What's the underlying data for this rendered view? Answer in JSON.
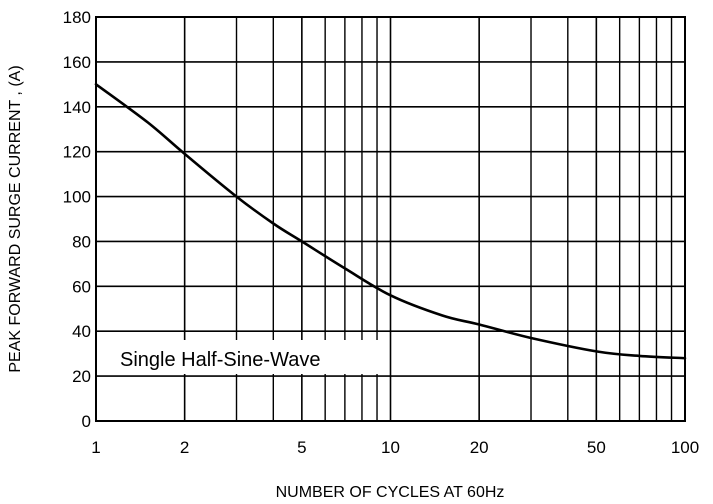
{
  "chart_data": {
    "type": "line",
    "title": "",
    "xlabel": "NUMBER OF CYCLES AT 60Hz",
    "ylabel": "PEAK FORWARD SURGE CURRENT , (A)",
    "x_scale": "log",
    "xlim": [
      1,
      100
    ],
    "ylim": [
      0,
      180
    ],
    "grid": true,
    "legend": "none",
    "x_ticks": [
      1,
      2,
      5,
      10,
      20,
      50,
      100
    ],
    "x_tick_labels": [
      "1",
      "2",
      "5",
      "10",
      "20",
      "50",
      "100"
    ],
    "x_minor_gridlines": [
      3,
      4,
      6,
      7,
      8,
      9,
      30,
      40,
      60,
      70,
      80,
      90
    ],
    "y_ticks": [
      0,
      20,
      40,
      60,
      80,
      100,
      120,
      140,
      160,
      180
    ],
    "y_tick_labels": [
      "0",
      "20",
      "40",
      "60",
      "80",
      "100",
      "120",
      "140",
      "160",
      "180"
    ],
    "annotation": "Single Half-Sine-Wave",
    "series": [
      {
        "x": [
          1,
          1.5,
          2,
          3,
          4,
          5,
          7,
          10,
          15,
          20,
          30,
          50,
          70,
          100
        ],
        "y": [
          150,
          133,
          119,
          100,
          88,
          80,
          68,
          56,
          47,
          43,
          37,
          31,
          29,
          28
        ],
        "color": "#000000"
      }
    ]
  }
}
